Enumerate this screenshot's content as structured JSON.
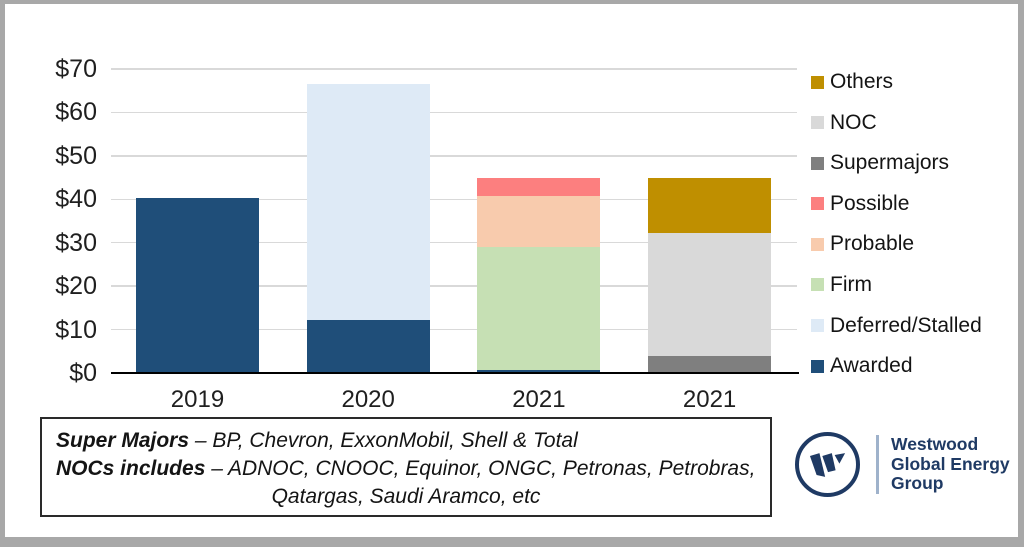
{
  "page": {
    "background": "#ffffff",
    "frame_color": "#a8a8a8"
  },
  "chart_data": {
    "type": "bar",
    "stacked": true,
    "title": "",
    "xlabel": "",
    "ylabel": "",
    "ylim": [
      0,
      70
    ],
    "grid": true,
    "legend_position": "right",
    "y_ticks": [
      {
        "value": 0,
        "label": "$0"
      },
      {
        "value": 10,
        "label": "$10"
      },
      {
        "value": 20,
        "label": "$20"
      },
      {
        "value": 30,
        "label": "$30"
      },
      {
        "value": 40,
        "label": "$40"
      },
      {
        "value": 50,
        "label": "$50"
      },
      {
        "value": 60,
        "label": "$60"
      },
      {
        "value": 70,
        "label": "$70"
      }
    ],
    "categories": [
      "2019",
      "2020",
      "2021",
      "2021"
    ],
    "series_colors": {
      "Awarded": "#1f4e79",
      "Deferred/Stalled": "#deeaf6",
      "Firm": "#c6e0b4",
      "Probable": "#f8cbad",
      "Possible": "#fc7f7f",
      "Supermajors": "#7f7f7f",
      "NOC": "#d9d9d9",
      "Others": "#bf8f00"
    },
    "bars": [
      {
        "category": "2019",
        "segments": [
          {
            "name": "Awarded",
            "value": 40.3
          }
        ]
      },
      {
        "category": "2020",
        "segments": [
          {
            "name": "Awarded",
            "value": 12.2
          },
          {
            "name": "Deferred/Stalled",
            "value": 54.3
          }
        ]
      },
      {
        "category": "2021",
        "segments": [
          {
            "name": "Awarded",
            "value": 0.8
          },
          {
            "name": "Firm",
            "value": 28.2
          },
          {
            "name": "Probable",
            "value": 11.7
          },
          {
            "name": "Possible",
            "value": 4.2
          }
        ]
      },
      {
        "category": "2021",
        "segments": [
          {
            "name": "Supermajors",
            "value": 4.0
          },
          {
            "name": "NOC",
            "value": 28.2
          },
          {
            "name": "Others",
            "value": 12.8
          }
        ]
      }
    ],
    "legend": [
      {
        "label": "Others",
        "color": "#bf8f00"
      },
      {
        "label": "NOC",
        "color": "#d9d9d9"
      },
      {
        "label": "Supermajors",
        "color": "#7f7f7f"
      },
      {
        "label": "Possible",
        "color": "#fc7f7f"
      },
      {
        "label": "Probable",
        "color": "#f8cbad"
      },
      {
        "label": "Firm",
        "color": "#c6e0b4"
      },
      {
        "label": "Deferred/Stalled",
        "color": "#deeaf6"
      },
      {
        "label": "Awarded",
        "color": "#1f4e79"
      }
    ]
  },
  "footnote": {
    "line1_bold": "Super Majors",
    "line1_rest": " – BP, Chevron, ExxonMobil, Shell & Total",
    "line2_bold": "NOCs includes",
    "line2_rest": " – ADNOC, CNOOC, Equinor, ONGC, Petronas, Petrobras,",
    "line3": "Qatargas, Saudi Aramco, etc"
  },
  "logo": {
    "line1": "Westwood",
    "line2": "Global Energy",
    "line3": "Group"
  }
}
